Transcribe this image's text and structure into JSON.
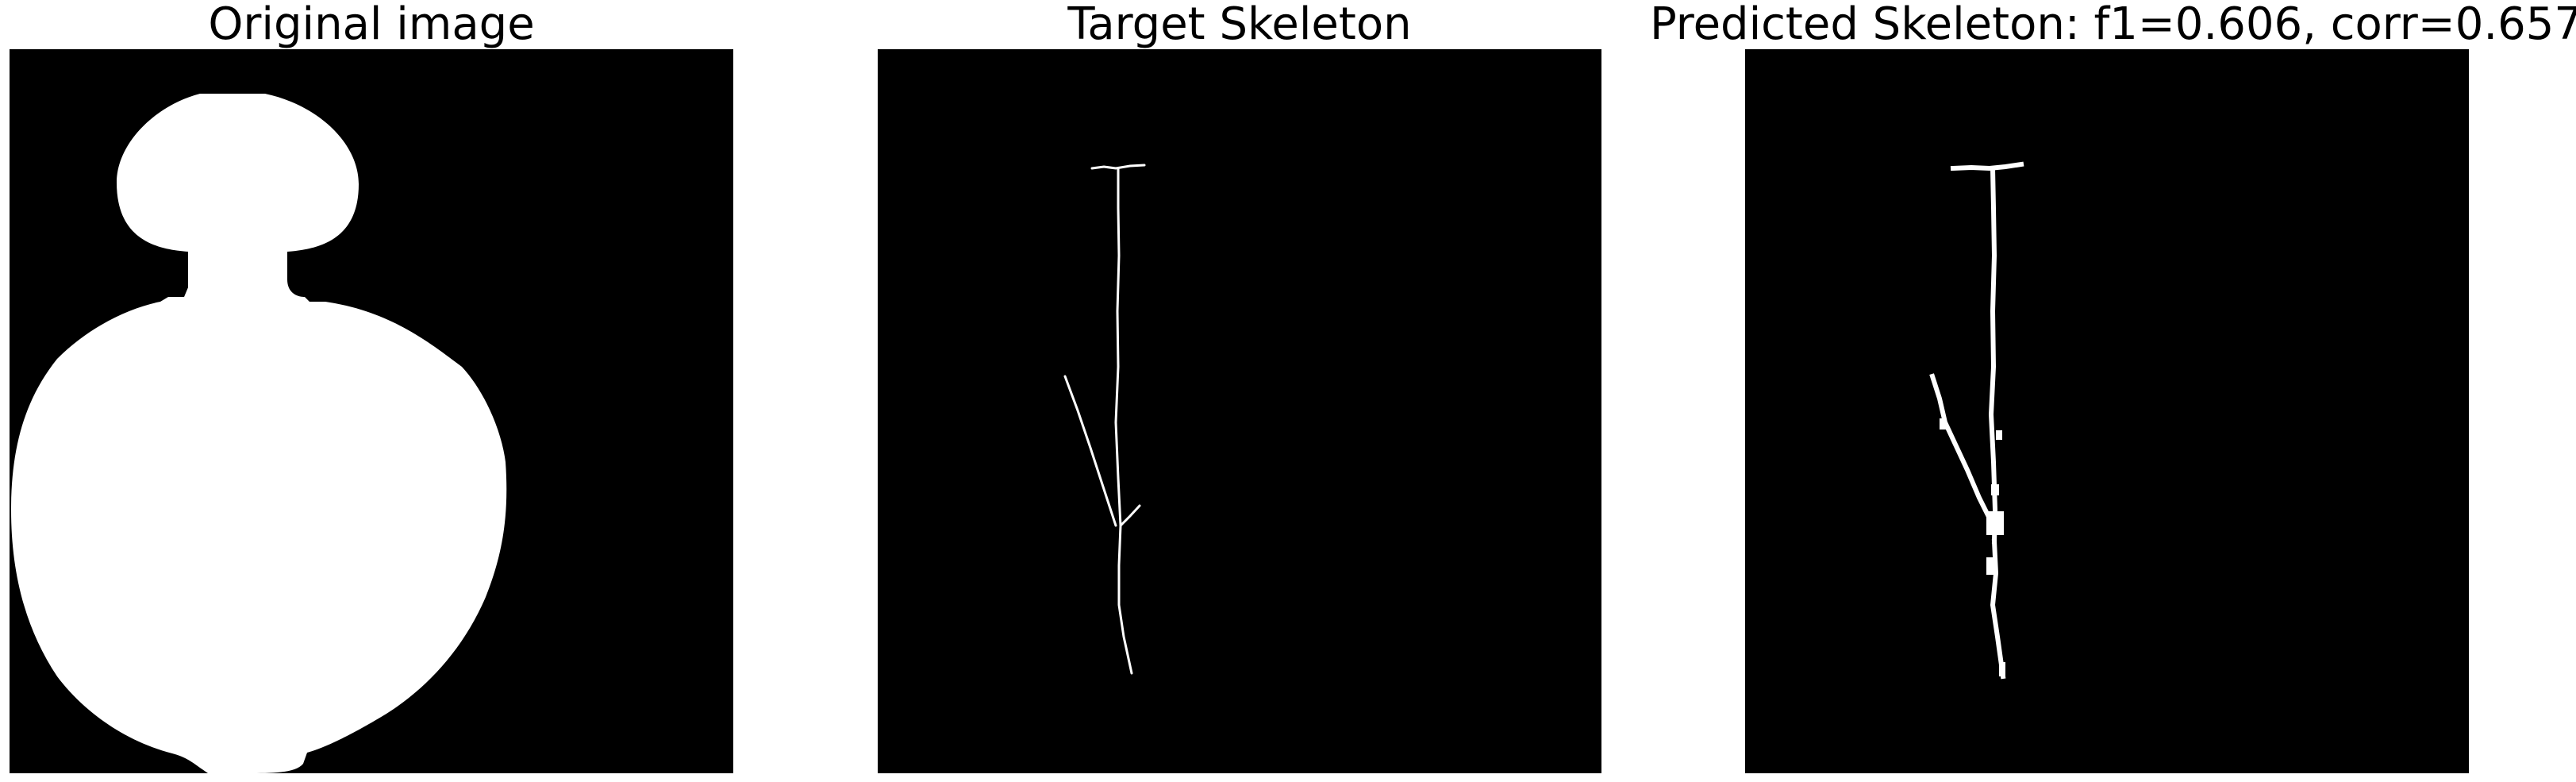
{
  "panels": {
    "original": {
      "title": "Original image"
    },
    "target": {
      "title": "Target Skeleton"
    },
    "predicted": {
      "title": "Predicted Skeleton: f1=0.606, corr=0.657"
    }
  },
  "colors": {
    "background": "#000000",
    "foreground": "#ffffff"
  }
}
